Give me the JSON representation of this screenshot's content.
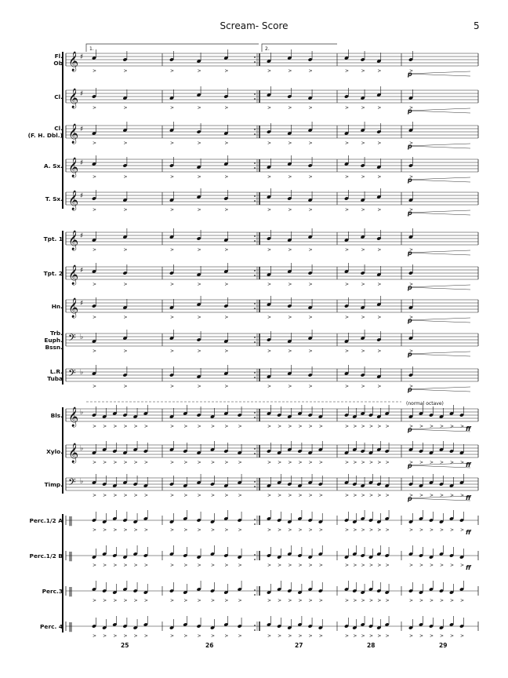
{
  "header": {
    "title": "Scream- Score",
    "page_number": "5"
  },
  "instruments": [
    {
      "label": "Fl.\nOb",
      "clef": "treble"
    },
    {
      "label": "Cl.",
      "clef": "treble"
    },
    {
      "label": "Cl.\n(F. H. Dbl.)",
      "clef": "treble"
    },
    {
      "label": "A. Sx.",
      "clef": "treble"
    },
    {
      "label": "T. Sx.",
      "clef": "treble"
    },
    {
      "label": "Tpt. 1",
      "clef": "treble"
    },
    {
      "label": "Tpt. 2",
      "clef": "treble"
    },
    {
      "label": "Hn.",
      "clef": "treble"
    },
    {
      "label": "Trb.\nEuph.\nBssn.",
      "clef": "bass"
    },
    {
      "label": "L.R.\nTuba",
      "clef": "bass"
    },
    {
      "label": "Bls.",
      "clef": "treble"
    },
    {
      "label": "Xylo.",
      "clef": "treble"
    },
    {
      "label": "Timp.",
      "clef": "bass"
    },
    {
      "label": "Perc.1/2 A",
      "clef": "perc"
    },
    {
      "label": "Perc.1/2 B",
      "clef": "perc"
    },
    {
      "label": "Perc.3",
      "clef": "perc"
    },
    {
      "label": "Perc. 4",
      "clef": "perc"
    }
  ],
  "volta": {
    "first": "1.",
    "second": "2."
  },
  "annotations": {
    "normal_octave": "(normal octave)",
    "dynamic_p": "p",
    "dynamic_ff": "ff"
  },
  "measure_numbers": [
    "25",
    "26",
    "27",
    "28",
    "29"
  ]
}
